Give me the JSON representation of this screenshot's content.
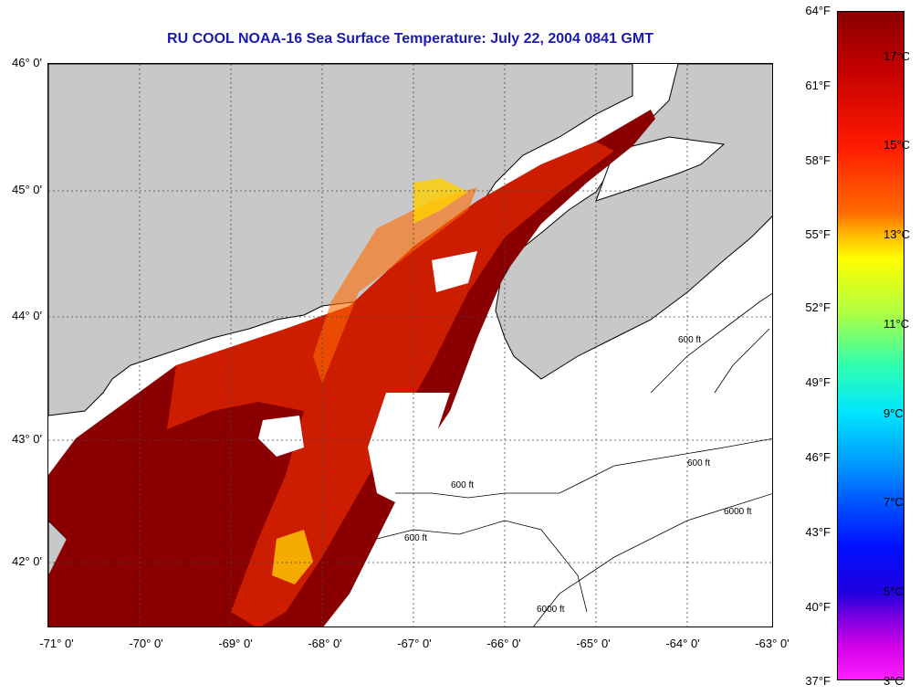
{
  "title": "RU COOL  NOAA-16  Sea Surface Temperature:  July 22, 2004 0841 GMT",
  "map": {
    "lon_range": [
      -71,
      -63
    ],
    "lat_range": [
      41.5,
      46
    ],
    "lat_labels": [
      "46° 0'",
      "45° 0'",
      "44° 0'",
      "43° 0'",
      "42° 0'"
    ],
    "lon_labels": [
      "-71° 0'",
      "-70° 0'",
      "-69° 0'",
      "-68° 0'",
      "-67° 0'",
      "-66° 0'",
      "-65° 0'",
      "-64° 0'",
      "-63° 0'"
    ],
    "contour_labels": [
      "600 ft",
      "6000 ft"
    ],
    "colors": {
      "land": "#c8c8c8",
      "nodata": "#ffffff",
      "sst_warm": "#8a0000",
      "sst_hot": "#d42000",
      "sst_mid": "#ff6a00",
      "sst_cool": "#ffd000"
    }
  },
  "colorbar": {
    "fahrenheit_labels": [
      "64°F",
      "61°F",
      "58°F",
      "55°F",
      "52°F",
      "49°F",
      "46°F",
      "43°F",
      "40°F",
      "37°F"
    ],
    "celsius_labels": [
      "17°C",
      "15°C",
      "13°C",
      "11°C",
      "9°C",
      "7°C",
      "5°C",
      "3°C"
    ]
  }
}
